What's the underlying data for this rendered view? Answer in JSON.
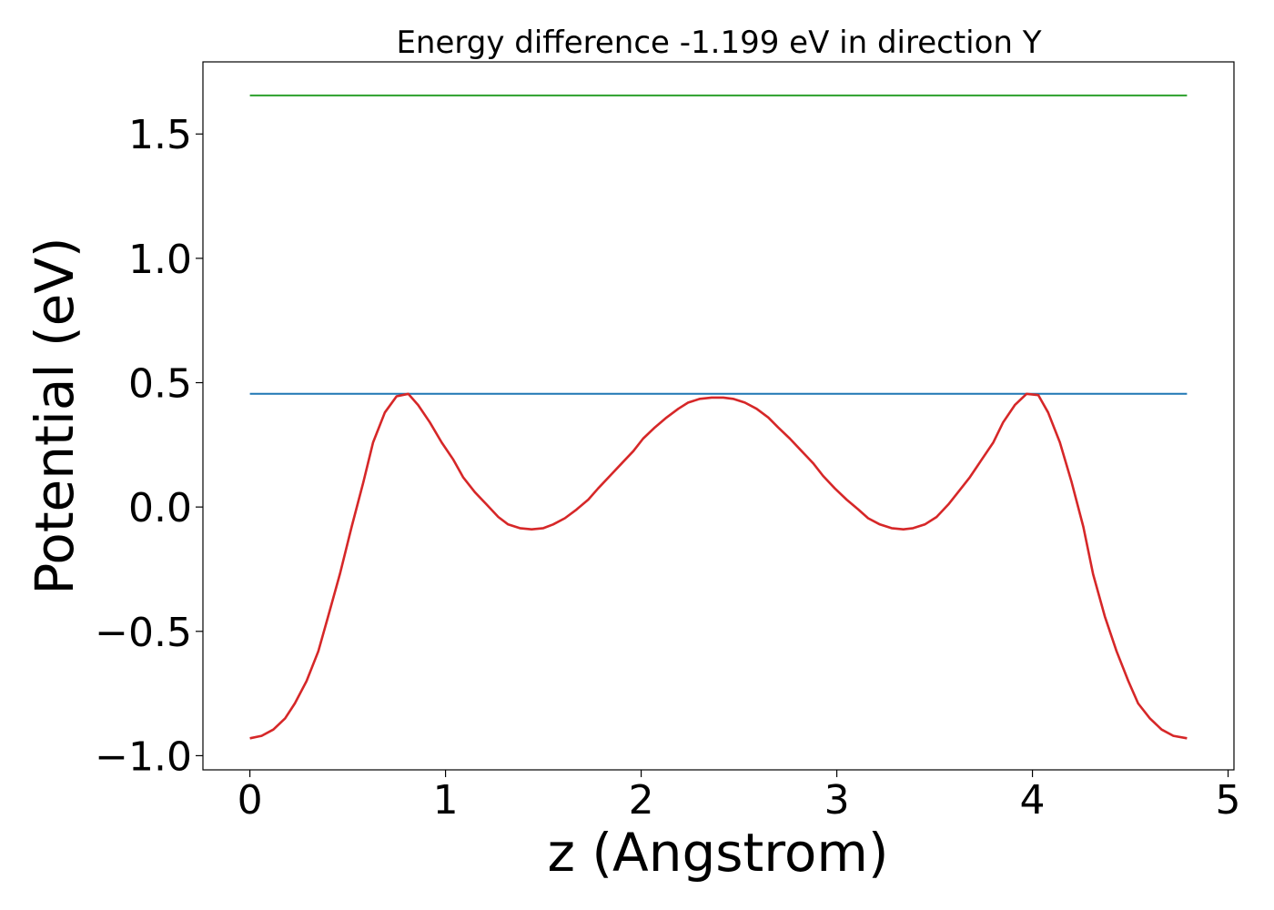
{
  "chart_data": {
    "type": "line",
    "title": "Energy difference -1.199 eV in direction Y",
    "xlabel": "z (Angstrom)",
    "ylabel": "Potential (eV)",
    "xlim": [
      -0.24,
      5.03
    ],
    "ylim": [
      -1.057,
      1.79
    ],
    "xticks": [
      0,
      1,
      2,
      3,
      4,
      5
    ],
    "xtick_labels": [
      "0",
      "1",
      "2",
      "3",
      "4",
      "5"
    ],
    "yticks": [
      -1.0,
      -0.5,
      0.0,
      0.5,
      1.0,
      1.5
    ],
    "ytick_labels": [
      "−1.0",
      "−0.5",
      "0.0",
      "0.5",
      "1.0",
      "1.5"
    ],
    "grid": false,
    "series": [
      {
        "color": "#2ca02c",
        "x": [
          0,
          4.79
        ],
        "y": [
          1.655,
          1.655
        ]
      },
      {
        "color": "#1f77b4",
        "x": [
          0,
          4.79
        ],
        "y": [
          0.455,
          0.455
        ]
      },
      {
        "color": "#d62728",
        "x": [
          0,
          0.06,
          0.12,
          0.18,
          0.23,
          0.29,
          0.35,
          0.4,
          0.46,
          0.52,
          0.58,
          0.63,
          0.69,
          0.75,
          0.81,
          0.86,
          0.92,
          0.98,
          1.04,
          1.09,
          1.15,
          1.21,
          1.27,
          1.32,
          1.38,
          1.44,
          1.5,
          1.55,
          1.61,
          1.67,
          1.73,
          1.78,
          1.84,
          1.9,
          1.96,
          2.01,
          2.07,
          2.13,
          2.19,
          2.24,
          2.3,
          2.36,
          2.42,
          2.47,
          2.53,
          2.59,
          2.65,
          2.7,
          2.76,
          2.82,
          2.88,
          2.93,
          2.99,
          3.05,
          3.11,
          3.16,
          3.22,
          3.28,
          3.34,
          3.39,
          3.45,
          3.51,
          3.57,
          3.62,
          3.68,
          3.74,
          3.8,
          3.85,
          3.91,
          3.97,
          4.03,
          4.08,
          4.14,
          4.2,
          4.26,
          4.31,
          4.37,
          4.43,
          4.49,
          4.54,
          4.6,
          4.66,
          4.72,
          4.79
        ],
        "y": [
          -0.93,
          -0.92,
          -0.895,
          -0.85,
          -0.79,
          -0.7,
          -0.58,
          -0.44,
          -0.27,
          -0.08,
          0.1,
          0.26,
          0.38,
          0.445,
          0.455,
          0.41,
          0.34,
          0.26,
          0.19,
          0.12,
          0.06,
          0.01,
          -0.04,
          -0.07,
          -0.085,
          -0.09,
          -0.085,
          -0.07,
          -0.045,
          -0.01,
          0.03,
          0.075,
          0.125,
          0.175,
          0.225,
          0.275,
          0.32,
          0.36,
          0.395,
          0.42,
          0.435,
          0.44,
          0.44,
          0.435,
          0.42,
          0.395,
          0.36,
          0.32,
          0.275,
          0.225,
          0.175,
          0.125,
          0.075,
          0.03,
          -0.01,
          -0.045,
          -0.07,
          -0.085,
          -0.09,
          -0.085,
          -0.07,
          -0.04,
          0.01,
          0.06,
          0.12,
          0.19,
          0.26,
          0.34,
          0.41,
          0.455,
          0.45,
          0.38,
          0.26,
          0.1,
          -0.08,
          -0.27,
          -0.44,
          -0.58,
          -0.7,
          -0.79,
          -0.85,
          -0.895,
          -0.92,
          -0.93
        ]
      }
    ]
  }
}
